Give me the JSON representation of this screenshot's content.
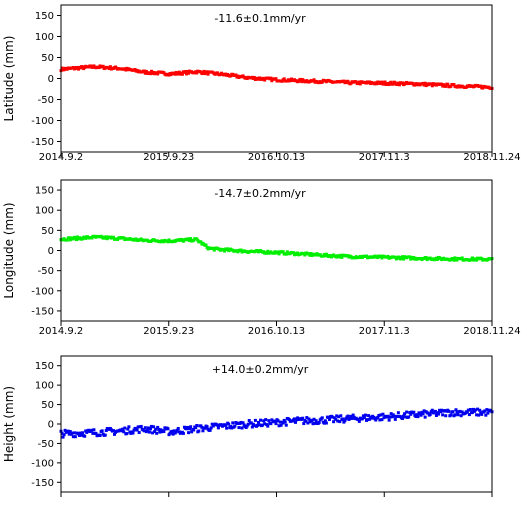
{
  "chart_data": [
    {
      "type": "scatter",
      "title": "",
      "annotation": "-11.6±0.1mm/yr",
      "ylabel": "Latitude (mm)",
      "xlabel": "",
      "ylim": [
        -175,
        175
      ],
      "yticks": [
        150,
        100,
        50,
        0,
        -50,
        -100,
        -150
      ],
      "xticks": [
        "2014.9.2",
        "2015.9.23",
        "2016.10.13",
        "2017.11.3",
        "2018.11.24"
      ],
      "xrange": [
        "2014-09-02",
        "2018-11-24"
      ],
      "color": "#ff0000",
      "series": [
        {
          "x": [
            "2014-09-02",
            "2015-01-01",
            "2015-04-01",
            "2015-07-01",
            "2015-10-01",
            "2016-01-01",
            "2016-04-01",
            "2016-07-01",
            "2016-10-13",
            "2017-01-01",
            "2017-04-01",
            "2017-07-01",
            "2017-11-03",
            "2018-03-01",
            "2018-07-01",
            "2018-11-24"
          ],
          "y": [
            22,
            28,
            24,
            15,
            11,
            16,
            10,
            2,
            -3,
            -5,
            -7,
            -10,
            -11,
            -13,
            -17,
            -21
          ]
        }
      ]
    },
    {
      "type": "scatter",
      "title": "",
      "annotation": "-14.7±0.2mm/yr",
      "ylabel": "Longitude (mm)",
      "xlabel": "",
      "ylim": [
        -175,
        175
      ],
      "yticks": [
        150,
        100,
        50,
        0,
        -50,
        -100,
        -150
      ],
      "xticks": [
        "2014.9.2",
        "2015.9.23",
        "2016.10.13",
        "2017.11.3",
        "2018.11.24"
      ],
      "xrange": [
        "2014-09-02",
        "2018-11-24"
      ],
      "color": "#00ee00",
      "series": [
        {
          "x": [
            "2014-09-02",
            "2015-01-01",
            "2015-04-01",
            "2015-07-01",
            "2015-10-01",
            "2016-01-01",
            "2016-02-15",
            "2016-04-01",
            "2016-07-01",
            "2016-10-13",
            "2017-01-01",
            "2017-04-01",
            "2017-07-01",
            "2017-11-03",
            "2018-03-01",
            "2018-07-01",
            "2018-11-24"
          ],
          "y": [
            28,
            33,
            30,
            25,
            24,
            27,
            5,
            2,
            -2,
            -5,
            -8,
            -12,
            -15,
            -17,
            -19,
            -21,
            -22
          ]
        }
      ]
    },
    {
      "type": "scatter",
      "title": "",
      "annotation": "+14.0±0.2mm/yr",
      "ylabel": "Height (mm)",
      "xlabel": "",
      "ylim": [
        -175,
        175
      ],
      "yticks": [
        150,
        100,
        50,
        0,
        -50,
        -100,
        -150
      ],
      "xticks": [],
      "xrange": [
        "2014-09-02",
        "2018-11-24"
      ],
      "color": "#0000ee",
      "series": [
        {
          "x": [
            "2014-09-02",
            "2015-01-01",
            "2015-04-01",
            "2015-07-01",
            "2015-10-01",
            "2016-01-01",
            "2016-04-01",
            "2016-07-01",
            "2016-10-13",
            "2017-01-01",
            "2017-04-01",
            "2017-07-01",
            "2017-11-03",
            "2018-03-01",
            "2018-07-01",
            "2018-11-24"
          ],
          "y": [
            -25,
            -22,
            -18,
            -12,
            -20,
            -12,
            -6,
            0,
            4,
            8,
            10,
            14,
            18,
            24,
            30,
            30
          ]
        }
      ]
    }
  ]
}
